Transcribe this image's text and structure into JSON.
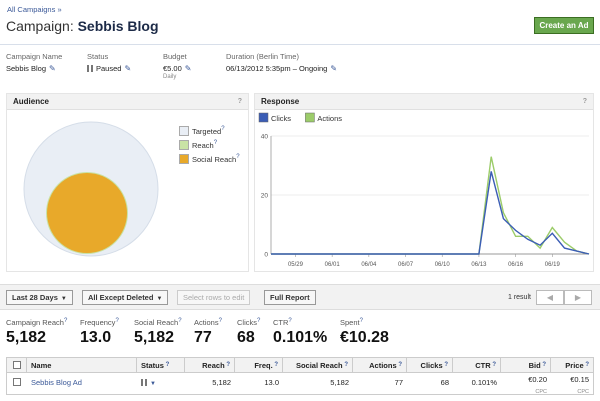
{
  "breadcrumb": {
    "label": "All Campaigns",
    "sep": "»"
  },
  "title": {
    "prefix": "Campaign:",
    "name": "Sebbis Blog"
  },
  "create_button": "Create an Ad",
  "meta": {
    "campaign_name": {
      "label": "Campaign Name",
      "value": "Sebbis Blog"
    },
    "status": {
      "label": "Status",
      "value": "Paused"
    },
    "budget": {
      "label": "Budget",
      "value": "€5.00",
      "sub": "Daily"
    },
    "duration": {
      "label": "Duration (Berlin Time)",
      "value": "06/13/2012 5:35pm – Ongoing"
    }
  },
  "audience": {
    "title": "Audience",
    "help": "?",
    "legend": [
      {
        "label": "Targeted",
        "color": "#e9eef5"
      },
      {
        "label": "Reach",
        "color": "#c9e3a5"
      },
      {
        "label": "Social Reach",
        "color": "#e8a92a"
      }
    ]
  },
  "response": {
    "title": "Response",
    "help": "?"
  },
  "chart_data": {
    "type": "line",
    "x": [
      "05/27",
      "05/28",
      "05/29",
      "05/30",
      "05/31",
      "06/01",
      "06/02",
      "06/03",
      "06/04",
      "06/05",
      "06/06",
      "06/07",
      "06/08",
      "06/09",
      "06/10",
      "06/11",
      "06/12",
      "06/13",
      "06/14",
      "06/15",
      "06/16",
      "06/17",
      "06/18",
      "06/19",
      "06/20",
      "06/21",
      "06/22"
    ],
    "xticks": [
      "05/29",
      "06/01",
      "06/04",
      "06/07",
      "06/10",
      "06/13",
      "06/16",
      "06/19"
    ],
    "series": [
      {
        "name": "Clicks",
        "color": "#3b5db5",
        "values": [
          0,
          0,
          0,
          0,
          0,
          0,
          0,
          0,
          0,
          0,
          0,
          0,
          0,
          0,
          0,
          0,
          0,
          0,
          28,
          12,
          8,
          5,
          3,
          7,
          2,
          1,
          0
        ]
      },
      {
        "name": "Actions",
        "color": "#9ccc6a",
        "values": [
          0,
          0,
          0,
          0,
          0,
          0,
          0,
          0,
          0,
          0,
          0,
          0,
          0,
          0,
          0,
          0,
          0,
          0,
          33,
          14,
          6,
          6,
          2,
          9,
          4,
          1,
          0
        ]
      }
    ],
    "yticks": [
      0,
      20,
      40
    ],
    "ylim": [
      0,
      40
    ],
    "legend": "top-left",
    "grid": "horizontal"
  },
  "toolbar": {
    "date_range": "Last 28 Days",
    "filter": "All Except Deleted",
    "select_rows": "Select rows to edit",
    "full_report": "Full Report",
    "result_count": "1 result"
  },
  "stats": [
    {
      "label": "Campaign Reach",
      "value": "5,182"
    },
    {
      "label": "Frequency",
      "value": "13.0"
    },
    {
      "label": "Social Reach",
      "value": "5,182"
    },
    {
      "label": "Actions",
      "value": "77"
    },
    {
      "label": "Clicks",
      "value": "68"
    },
    {
      "label": "CTR",
      "value": "0.101%"
    },
    {
      "label": "Spent",
      "value": "€10.28"
    }
  ],
  "table": {
    "headers": {
      "name": "Name",
      "status": "Status",
      "reach": "Reach",
      "freq": "Freq.",
      "social": "Social Reach",
      "actions": "Actions",
      "clicks": "Clicks",
      "ctr": "CTR",
      "bid": "Bid",
      "price": "Price"
    },
    "row": {
      "name": "Sebbis Blog Ad",
      "reach": "5,182",
      "freq": "13.0",
      "social": "5,182",
      "actions": "77",
      "clicks": "68",
      "ctr": "0.101%",
      "bid": "€0.20",
      "bid_sub": "CPC",
      "price": "€0.15",
      "price_sub": "CPC"
    }
  }
}
